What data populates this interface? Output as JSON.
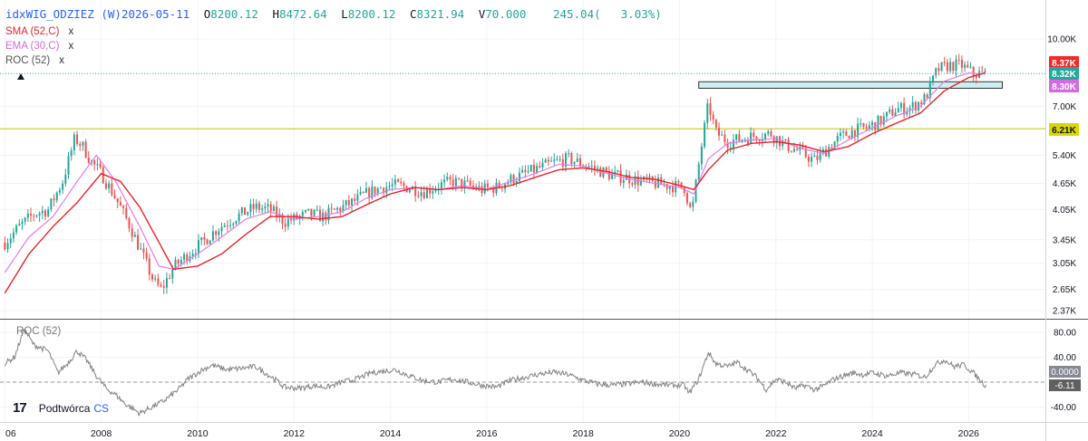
{
  "header": {
    "symbol": "idxWIG_ODZIEZ (W)",
    "date": "2026-05-11",
    "open_label": "O",
    "open": "8200.12",
    "high_label": "H",
    "high": "8472.64",
    "low_label": "L",
    "low": "8200.12",
    "close_label": "C",
    "close": "8321.94",
    "volume_label": "V",
    "volume": "70.000",
    "change": "245.04(",
    "change_pct": "3.03%)"
  },
  "legend": {
    "sma": "SMA (52,C)",
    "ema": "EMA (30,C)",
    "roc": "ROC (52)",
    "close_mark": "x",
    "roc_pane_label": "ROC (52)"
  },
  "brand": {
    "logo": "17",
    "name": "Podtwórca",
    "suffix": "CS"
  },
  "colors": {
    "up": "#26a69a",
    "down": "#ef5350",
    "sma": "#e8232b",
    "ema": "#e57ce5",
    "roc": "#808080",
    "hline": "#d4cc3a",
    "dotted": "#26a69a",
    "zone_fill": "#cdeef3",
    "zone_stroke": "#333333"
  },
  "chart_data": [
    {
      "type": "candlestick",
      "title": "idxWIG_ODZIEZ (W)",
      "yscale": "log",
      "ylim": [
        2200,
        10800
      ],
      "xlim": [
        2006,
        2027.4
      ],
      "x_ticks": [
        "06",
        "2008",
        "2010",
        "2012",
        "2014",
        "2016",
        "2018",
        "2020",
        "2022",
        "2024",
        "2026"
      ],
      "y_ticks": [
        "10.00K",
        "7.00K",
        "6.21K",
        "5.40K",
        "4.65K",
        "4.05K",
        "3.45K",
        "3.05K",
        "2.65K",
        "2.37K"
      ],
      "price_labels": [
        {
          "text": "8.37K",
          "value": 8370,
          "color": "#ef2b2b"
        },
        {
          "text": "8.32K",
          "value": 8321.94,
          "color": "#26a69a"
        },
        {
          "text": "8.30K",
          "value": 8300,
          "color": "#d36bdf"
        },
        {
          "text": "6.21K",
          "value": 6210,
          "color": "#d8d800"
        }
      ],
      "horizontal_line": 6210,
      "current_close": 8321.94,
      "zone": {
        "x_start": 2020.4,
        "x_end": 2026.7,
        "low": 7700,
        "high": 7970
      },
      "close_series": [
        [
          2006.0,
          3400
        ],
        [
          2006.3,
          3700
        ],
        [
          2006.6,
          3950
        ],
        [
          2006.9,
          4050
        ],
        [
          2007.2,
          4700
        ],
        [
          2007.45,
          5900
        ],
        [
          2007.6,
          5700
        ],
        [
          2007.8,
          5200
        ],
        [
          2008.0,
          4900
        ],
        [
          2008.3,
          4300
        ],
        [
          2008.6,
          3700
        ],
        [
          2008.9,
          3100
        ],
        [
          2009.1,
          2750
        ],
        [
          2009.25,
          2650
        ],
        [
          2009.5,
          2980
        ],
        [
          2009.8,
          3200
        ],
        [
          2010.1,
          3400
        ],
        [
          2010.4,
          3650
        ],
        [
          2010.8,
          3900
        ],
        [
          2011.2,
          4100
        ],
        [
          2011.5,
          4050
        ],
        [
          2011.8,
          3800
        ],
        [
          2012.0,
          3850
        ],
        [
          2012.3,
          3950
        ],
        [
          2012.6,
          3900
        ],
        [
          2012.9,
          4050
        ],
        [
          2013.2,
          4200
        ],
        [
          2013.5,
          4400
        ],
        [
          2013.8,
          4550
        ],
        [
          2014.1,
          4600
        ],
        [
          2014.4,
          4550
        ],
        [
          2014.7,
          4450
        ],
        [
          2015.0,
          4600
        ],
        [
          2015.3,
          4700
        ],
        [
          2015.6,
          4600
        ],
        [
          2015.9,
          4500
        ],
        [
          2016.2,
          4550
        ],
        [
          2016.5,
          4750
        ],
        [
          2016.8,
          4900
        ],
        [
          2017.1,
          5050
        ],
        [
          2017.4,
          5200
        ],
        [
          2017.7,
          5300
        ],
        [
          2018.0,
          5150
        ],
        [
          2018.3,
          5000
        ],
        [
          2018.6,
          4850
        ],
        [
          2018.9,
          4800
        ],
        [
          2019.2,
          4700
        ],
        [
          2019.5,
          4650
        ],
        [
          2019.8,
          4600
        ],
        [
          2020.1,
          4550
        ],
        [
          2020.25,
          3950
        ],
        [
          2020.45,
          5600
        ],
        [
          2020.6,
          7100
        ],
        [
          2020.75,
          6100
        ],
        [
          2021.0,
          5800
        ],
        [
          2021.3,
          5900
        ],
        [
          2021.6,
          6000
        ],
        [
          2021.9,
          6050
        ],
        [
          2022.2,
          5700
        ],
        [
          2022.5,
          5500
        ],
        [
          2022.8,
          5250
        ],
        [
          2023.0,
          5500
        ],
        [
          2023.3,
          5900
        ],
        [
          2023.6,
          6150
        ],
        [
          2023.9,
          6250
        ],
        [
          2024.2,
          6500
        ],
        [
          2024.5,
          6900
        ],
        [
          2024.8,
          6950
        ],
        [
          2025.1,
          7300
        ],
        [
          2025.35,
          8500
        ],
        [
          2025.6,
          8700
        ],
        [
          2025.85,
          8700
        ],
        [
          2026.1,
          8300
        ],
        [
          2026.36,
          8321.94
        ]
      ],
      "sma_series": [
        [
          2006.0,
          2600
        ],
        [
          2006.5,
          3200
        ],
        [
          2007.0,
          3700
        ],
        [
          2007.5,
          4200
        ],
        [
          2008.0,
          4900
        ],
        [
          2008.4,
          4700
        ],
        [
          2008.8,
          4100
        ],
        [
          2009.2,
          3400
        ],
        [
          2009.5,
          2950
        ],
        [
          2010.0,
          3000
        ],
        [
          2010.5,
          3200
        ],
        [
          2011.0,
          3550
        ],
        [
          2011.5,
          3900
        ],
        [
          2012.0,
          3900
        ],
        [
          2012.5,
          3850
        ],
        [
          2013.0,
          3900
        ],
        [
          2013.5,
          4150
        ],
        [
          2014.0,
          4400
        ],
        [
          2014.5,
          4550
        ],
        [
          2015.0,
          4500
        ],
        [
          2015.5,
          4550
        ],
        [
          2016.0,
          4500
        ],
        [
          2016.5,
          4600
        ],
        [
          2017.0,
          4800
        ],
        [
          2017.5,
          5000
        ],
        [
          2018.0,
          5050
        ],
        [
          2018.5,
          4950
        ],
        [
          2019.0,
          4800
        ],
        [
          2019.5,
          4750
        ],
        [
          2020.0,
          4600
        ],
        [
          2020.3,
          4500
        ],
        [
          2020.6,
          5000
        ],
        [
          2021.0,
          5550
        ],
        [
          2021.5,
          5750
        ],
        [
          2022.0,
          5800
        ],
        [
          2022.5,
          5700
        ],
        [
          2023.0,
          5500
        ],
        [
          2023.5,
          5650
        ],
        [
          2024.0,
          6050
        ],
        [
          2024.5,
          6400
        ],
        [
          2025.0,
          6750
        ],
        [
          2025.5,
          7600
        ],
        [
          2026.0,
          8150
        ],
        [
          2026.36,
          8370
        ]
      ],
      "ema_series": [
        [
          2006.0,
          2900
        ],
        [
          2006.5,
          3500
        ],
        [
          2007.0,
          3900
        ],
        [
          2007.5,
          4700
        ],
        [
          2007.9,
          5400
        ],
        [
          2008.3,
          4700
        ],
        [
          2008.8,
          3700
        ],
        [
          2009.2,
          3000
        ],
        [
          2009.5,
          2950
        ],
        [
          2010.0,
          3200
        ],
        [
          2010.5,
          3500
        ],
        [
          2011.0,
          3850
        ],
        [
          2011.5,
          4000
        ],
        [
          2012.0,
          3850
        ],
        [
          2012.5,
          3900
        ],
        [
          2013.0,
          4000
        ],
        [
          2013.5,
          4300
        ],
        [
          2014.0,
          4500
        ],
        [
          2014.5,
          4550
        ],
        [
          2015.0,
          4500
        ],
        [
          2015.5,
          4600
        ],
        [
          2016.0,
          4500
        ],
        [
          2016.5,
          4700
        ],
        [
          2017.0,
          4900
        ],
        [
          2017.5,
          5150
        ],
        [
          2018.0,
          5100
        ],
        [
          2018.5,
          4900
        ],
        [
          2019.0,
          4750
        ],
        [
          2019.5,
          4650
        ],
        [
          2020.0,
          4550
        ],
        [
          2020.3,
          4400
        ],
        [
          2020.6,
          5300
        ],
        [
          2021.0,
          5750
        ],
        [
          2021.5,
          5850
        ],
        [
          2022.0,
          5900
        ],
        [
          2022.5,
          5600
        ],
        [
          2023.0,
          5450
        ],
        [
          2023.5,
          5850
        ],
        [
          2024.0,
          6250
        ],
        [
          2024.5,
          6650
        ],
        [
          2025.0,
          7000
        ],
        [
          2025.5,
          8000
        ],
        [
          2026.0,
          8350
        ],
        [
          2026.36,
          8300
        ]
      ]
    },
    {
      "type": "line",
      "title": "ROC (52)",
      "ylim": [
        -55,
        100
      ],
      "y_ticks": [
        "80.00",
        "40.00",
        "0.0000",
        "-40.00"
      ],
      "zero_label": "0.0000",
      "last_value": -6.11,
      "last_label": "-6.11",
      "series": [
        [
          2006.0,
          30
        ],
        [
          2006.2,
          40
        ],
        [
          2006.4,
          85
        ],
        [
          2006.6,
          60
        ],
        [
          2006.9,
          50
        ],
        [
          2007.1,
          15
        ],
        [
          2007.3,
          30
        ],
        [
          2007.5,
          50
        ],
        [
          2007.7,
          35
        ],
        [
          2007.9,
          10
        ],
        [
          2008.1,
          -10
        ],
        [
          2008.3,
          -20
        ],
        [
          2008.5,
          -35
        ],
        [
          2008.8,
          -50
        ],
        [
          2009.0,
          -42
        ],
        [
          2009.3,
          -30
        ],
        [
          2009.6,
          -12
        ],
        [
          2009.8,
          5
        ],
        [
          2010.1,
          20
        ],
        [
          2010.3,
          27
        ],
        [
          2010.6,
          20
        ],
        [
          2010.9,
          22
        ],
        [
          2011.2,
          25
        ],
        [
          2011.4,
          15
        ],
        [
          2011.6,
          5
        ],
        [
          2011.8,
          -8
        ],
        [
          2012.1,
          -10
        ],
        [
          2012.4,
          -6
        ],
        [
          2012.7,
          -8
        ],
        [
          2013.0,
          0
        ],
        [
          2013.3,
          5
        ],
        [
          2013.6,
          15
        ],
        [
          2013.9,
          18
        ],
        [
          2014.1,
          20
        ],
        [
          2014.4,
          10
        ],
        [
          2014.7,
          2
        ],
        [
          2015.0,
          0
        ],
        [
          2015.3,
          5
        ],
        [
          2015.6,
          0
        ],
        [
          2015.9,
          -5
        ],
        [
          2016.2,
          -8
        ],
        [
          2016.5,
          3
        ],
        [
          2016.8,
          8
        ],
        [
          2017.1,
          13
        ],
        [
          2017.4,
          16
        ],
        [
          2017.7,
          12
        ],
        [
          2018.0,
          3
        ],
        [
          2018.3,
          -3
        ],
        [
          2018.6,
          -5
        ],
        [
          2018.9,
          -3
        ],
        [
          2019.2,
          0
        ],
        [
          2019.5,
          -3
        ],
        [
          2019.8,
          -5
        ],
        [
          2020.1,
          -5
        ],
        [
          2020.2,
          -18
        ],
        [
          2020.4,
          5
        ],
        [
          2020.6,
          48
        ],
        [
          2020.75,
          30
        ],
        [
          2021.0,
          25
        ],
        [
          2021.2,
          32
        ],
        [
          2021.4,
          20
        ],
        [
          2021.6,
          8
        ],
        [
          2021.8,
          -12
        ],
        [
          2022.0,
          5
        ],
        [
          2022.2,
          0
        ],
        [
          2022.4,
          -10
        ],
        [
          2022.6,
          -5
        ],
        [
          2022.8,
          -12
        ],
        [
          2023.0,
          -6
        ],
        [
          2023.2,
          5
        ],
        [
          2023.4,
          10
        ],
        [
          2023.6,
          15
        ],
        [
          2023.8,
          12
        ],
        [
          2024.0,
          15
        ],
        [
          2024.3,
          10
        ],
        [
          2024.6,
          15
        ],
        [
          2024.9,
          12
        ],
        [
          2025.1,
          8
        ],
        [
          2025.3,
          28
        ],
        [
          2025.5,
          36
        ],
        [
          2025.7,
          25
        ],
        [
          2025.9,
          28
        ],
        [
          2026.1,
          15
        ],
        [
          2026.25,
          2
        ],
        [
          2026.36,
          -6.11
        ]
      ]
    }
  ]
}
